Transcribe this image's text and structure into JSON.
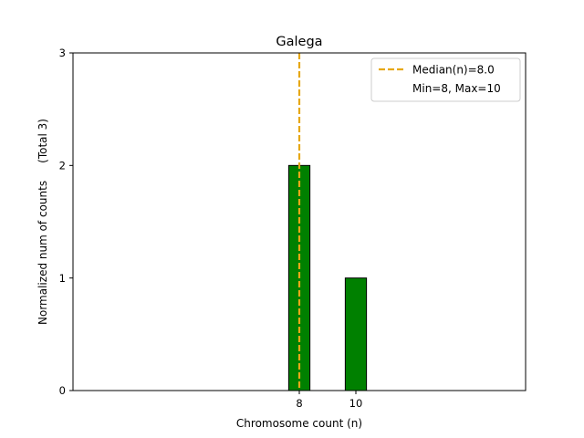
{
  "chart_data": {
    "type": "bar",
    "title": "Galega",
    "xlabel": "Chromosome count (n)",
    "ylabel": "Normalized num of counts     (Total 3)",
    "xlim": [
      0,
      16
    ],
    "ylim": [
      0,
      3
    ],
    "x_ticks": [
      8,
      10
    ],
    "y_ticks": [
      0,
      1,
      2,
      3
    ],
    "bars": [
      {
        "x": 8,
        "value": 2
      },
      {
        "x": 10,
        "value": 1
      }
    ],
    "bar_width": 0.75,
    "median": 8.0,
    "legend": {
      "placement": "top-right",
      "entries": [
        {
          "label": "Median(n)=8.0",
          "style": "dashed-line"
        },
        {
          "label": "Min=8, Max=10",
          "style": "none"
        }
      ]
    },
    "colors": {
      "bar_fill": "#008000",
      "bar_edge": "#000000",
      "median_line": "#e6a817"
    },
    "grid": false
  }
}
